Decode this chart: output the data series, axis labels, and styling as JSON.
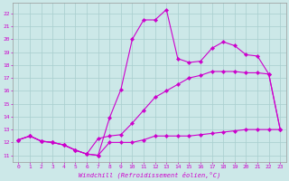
{
  "xlabel": "Windchill (Refroidissement éolien,°C)",
  "bg_color": "#cce8e8",
  "grid_color": "#a8cece",
  "line_color": "#cc00cc",
  "xlim": [
    -0.5,
    23.5
  ],
  "ylim": [
    10.5,
    22.8
  ],
  "xticks": [
    0,
    1,
    2,
    3,
    4,
    5,
    6,
    7,
    8,
    9,
    10,
    11,
    12,
    13,
    14,
    15,
    16,
    17,
    18,
    19,
    20,
    21,
    22,
    23
  ],
  "yticks": [
    11,
    12,
    13,
    14,
    15,
    16,
    17,
    18,
    19,
    20,
    21,
    22
  ],
  "line1_x": [
    0,
    1,
    2,
    3,
    4,
    5,
    6,
    7,
    8,
    9,
    10,
    11,
    12,
    13,
    14,
    15,
    16,
    17,
    18,
    19,
    20,
    21,
    22,
    23
  ],
  "line1_y": [
    12.2,
    12.5,
    12.1,
    12.0,
    11.8,
    11.4,
    11.1,
    11.0,
    12.0,
    12.0,
    12.0,
    12.2,
    12.5,
    12.5,
    12.5,
    12.5,
    12.6,
    12.7,
    12.8,
    12.9,
    13.0,
    13.0,
    13.0,
    13.0
  ],
  "line2_x": [
    0,
    1,
    2,
    3,
    4,
    5,
    6,
    7,
    8,
    9,
    10,
    11,
    12,
    13,
    14,
    15,
    16,
    17,
    18,
    19,
    20,
    21,
    22,
    23
  ],
  "line2_y": [
    12.2,
    12.5,
    12.1,
    12.0,
    11.8,
    11.4,
    11.1,
    12.3,
    12.5,
    12.6,
    13.5,
    14.5,
    15.5,
    16.0,
    16.5,
    17.0,
    17.2,
    17.5,
    17.5,
    17.5,
    17.4,
    17.4,
    17.3,
    13.0
  ],
  "line3_x": [
    0,
    1,
    2,
    3,
    4,
    5,
    6,
    7,
    8,
    9,
    10,
    11,
    12,
    13,
    14,
    15,
    16,
    17,
    18,
    19,
    20,
    21,
    22,
    23
  ],
  "line3_y": [
    12.2,
    12.5,
    12.1,
    12.0,
    11.8,
    11.4,
    11.1,
    11.0,
    13.9,
    16.1,
    20.0,
    21.5,
    21.5,
    22.3,
    18.5,
    18.2,
    18.3,
    19.3,
    19.8,
    19.5,
    18.8,
    18.7,
    17.3,
    13.0
  ]
}
